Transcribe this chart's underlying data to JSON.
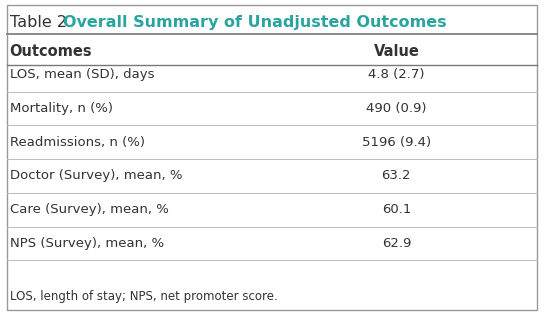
{
  "title_prefix": "Table 2. ",
  "title_colored": "Overall Summary of Unadjusted Outcomes",
  "title_color": "#2aa49f",
  "title_prefix_color": "#333333",
  "header_col1": "Outcomes",
  "header_col2": "Value",
  "rows": [
    [
      "LOS, mean (SD), days",
      "4.8 (2.7)"
    ],
    [
      "Mortality, n (%)",
      "490 (0.9)"
    ],
    [
      "Readmissions, n (%)",
      "5196 (9.4)"
    ],
    [
      "Doctor (Survey), mean, %",
      "63.2"
    ],
    [
      "Care (Survey), mean, %",
      "60.1"
    ],
    [
      "NPS (Survey), mean, %",
      "62.9"
    ]
  ],
  "footnote": "LOS, length of stay; NPS, net promoter score.",
  "bg_color": "#ffffff",
  "line_color_dark": "#777777",
  "line_color_light": "#bbbbbb",
  "text_color": "#333333",
  "font_size": 9.5,
  "header_font_size": 10.5,
  "title_font_size": 11.5
}
